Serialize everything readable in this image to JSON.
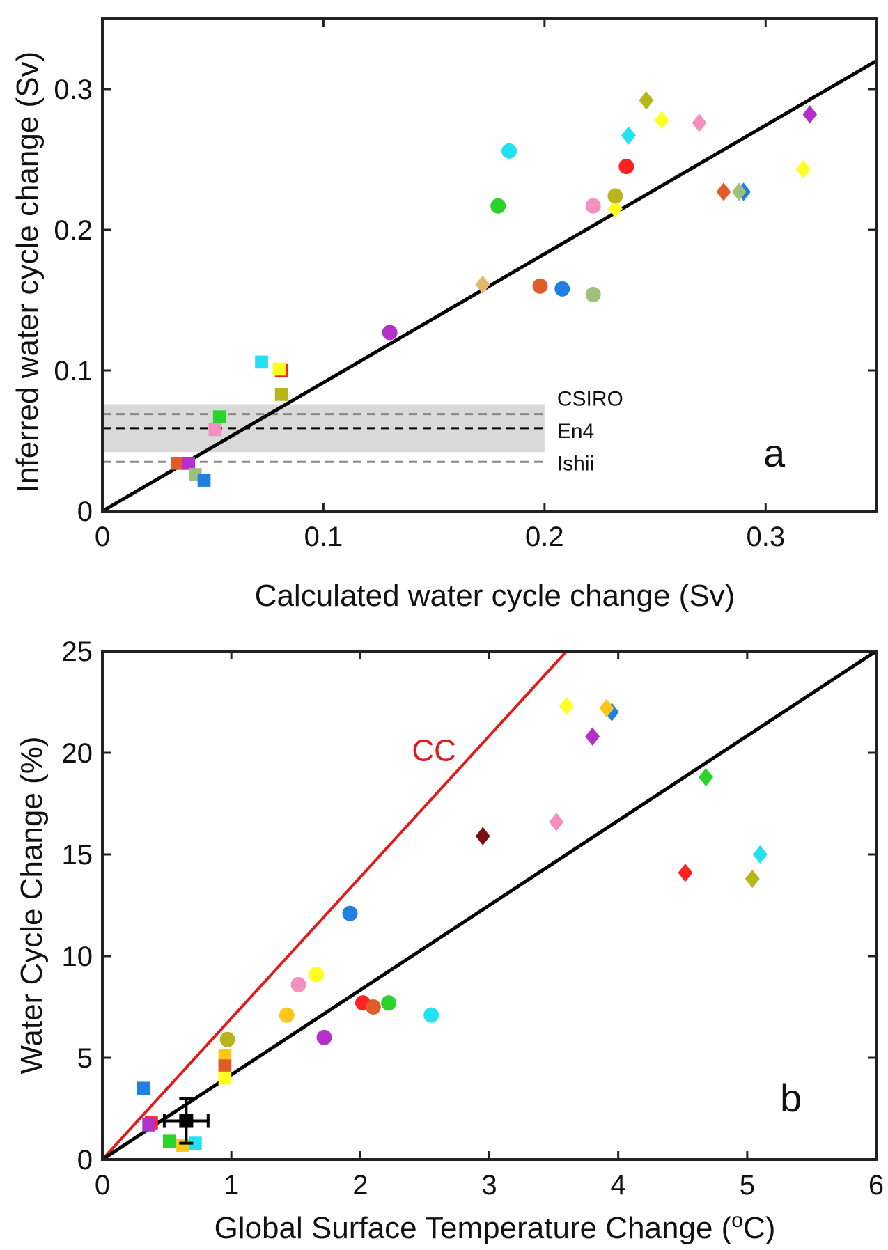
{
  "chart_data": [
    {
      "type": "scatter",
      "panel_letter": "a",
      "xlabel": "Calculated water cycle change (Sv)",
      "ylabel": "Inferred water cycle change (Sv)",
      "xlim": [
        0,
        0.35
      ],
      "ylim": [
        0,
        0.35
      ],
      "xticks": [
        0,
        0.1,
        0.2,
        0.3
      ],
      "yticks": [
        0,
        0.1,
        0.2,
        0.3
      ],
      "xtick_labels": [
        "0",
        "0.1",
        "0.2",
        "0.3"
      ],
      "ytick_labels": [
        "0",
        "0.1",
        "0.2",
        "0.3"
      ],
      "grid": false,
      "fit_line": {
        "x": [
          0,
          0.35
        ],
        "y": [
          0,
          0.32
        ],
        "color": "#000000"
      },
      "shaded_band": {
        "x": [
          0,
          0.2
        ],
        "y": [
          0.042,
          0.076
        ],
        "color": "#d9d9d9"
      },
      "reference_lines": [
        {
          "label": "CSIRO",
          "y": 0.069,
          "x_end": 0.2,
          "color": "#888888"
        },
        {
          "label": "En4",
          "y": 0.059,
          "x_end": 0.2,
          "color": "#000000"
        },
        {
          "label": "Ishii",
          "y": 0.035,
          "x_end": 0.2,
          "color": "#888888"
        }
      ],
      "points": [
        {
          "x": 0.034,
          "y": 0.034,
          "marker": "square",
          "color": "#e25c2a"
        },
        {
          "x": 0.039,
          "y": 0.034,
          "marker": "square",
          "color": "#b431c9"
        },
        {
          "x": 0.042,
          "y": 0.026,
          "marker": "square",
          "color": "#9fc07a"
        },
        {
          "x": 0.046,
          "y": 0.022,
          "marker": "square",
          "color": "#1f80e0"
        },
        {
          "x": 0.051,
          "y": 0.058,
          "marker": "square",
          "color": "#f48fbf"
        },
        {
          "x": 0.053,
          "y": 0.067,
          "marker": "square",
          "color": "#2ad42a"
        },
        {
          "x": 0.072,
          "y": 0.106,
          "marker": "square",
          "color": "#22e2f2"
        },
        {
          "x": 0.081,
          "y": 0.1,
          "marker": "square",
          "color": "#ff2222"
        },
        {
          "x": 0.08,
          "y": 0.101,
          "marker": "square",
          "color": "#ffff22"
        },
        {
          "x": 0.081,
          "y": 0.083,
          "marker": "square",
          "color": "#b8b41a"
        },
        {
          "x": 0.13,
          "y": 0.127,
          "marker": "circle",
          "color": "#b431c9"
        },
        {
          "x": 0.172,
          "y": 0.161,
          "marker": "diamond",
          "color": "#e6b86c"
        },
        {
          "x": 0.179,
          "y": 0.217,
          "marker": "circle",
          "color": "#2ad42a"
        },
        {
          "x": 0.184,
          "y": 0.256,
          "marker": "circle",
          "color": "#22e2f2"
        },
        {
          "x": 0.198,
          "y": 0.16,
          "marker": "circle",
          "color": "#e25c2a"
        },
        {
          "x": 0.208,
          "y": 0.158,
          "marker": "circle",
          "color": "#1f80e0"
        },
        {
          "x": 0.222,
          "y": 0.154,
          "marker": "circle",
          "color": "#9fc07a"
        },
        {
          "x": 0.222,
          "y": 0.217,
          "marker": "circle",
          "color": "#f48fbf"
        },
        {
          "x": 0.232,
          "y": 0.215,
          "marker": "diamond",
          "color": "#ffff22"
        },
        {
          "x": 0.232,
          "y": 0.224,
          "marker": "circle",
          "color": "#b8b41a"
        },
        {
          "x": 0.237,
          "y": 0.245,
          "marker": "circle",
          "color": "#ff2222"
        },
        {
          "x": 0.238,
          "y": 0.267,
          "marker": "diamond",
          "color": "#22e2f2"
        },
        {
          "x": 0.246,
          "y": 0.292,
          "marker": "diamond",
          "color": "#b8b41a"
        },
        {
          "x": 0.253,
          "y": 0.278,
          "marker": "diamond",
          "color": "#ffff22"
        },
        {
          "x": 0.27,
          "y": 0.276,
          "marker": "diamond",
          "color": "#f48fbf"
        },
        {
          "x": 0.281,
          "y": 0.227,
          "marker": "diamond",
          "color": "#e25c2a"
        },
        {
          "x": 0.29,
          "y": 0.227,
          "marker": "diamond",
          "color": "#1f80e0"
        },
        {
          "x": 0.288,
          "y": 0.227,
          "marker": "diamond",
          "color": "#9fc07a"
        },
        {
          "x": 0.317,
          "y": 0.243,
          "marker": "diamond",
          "color": "#ffff22"
        },
        {
          "x": 0.32,
          "y": 0.282,
          "marker": "diamond",
          "color": "#b431c9"
        }
      ]
    },
    {
      "type": "scatter",
      "panel_letter": "b",
      "xlabel": "Global Surface Temperature Change  (",
      "xlabel_degree": "o",
      "xlabel_unit": "C)",
      "ylabel": "Water Cycle Change (%)",
      "xlim": [
        0,
        6
      ],
      "ylim": [
        0,
        25
      ],
      "xticks": [
        0,
        1,
        2,
        3,
        4,
        5,
        6
      ],
      "yticks": [
        0,
        5,
        10,
        15,
        20,
        25
      ],
      "xtick_labels": [
        "0",
        "1",
        "2",
        "3",
        "4",
        "5",
        "6"
      ],
      "ytick_labels": [
        "0",
        "5",
        "10",
        "15",
        "20",
        "25"
      ],
      "grid": false,
      "fit_line": {
        "x": [
          0,
          6
        ],
        "y": [
          0,
          25
        ],
        "color": "#000000"
      },
      "cc_line": {
        "label": "CC",
        "x": [
          0,
          3.6
        ],
        "y": [
          0,
          25
        ],
        "color": "#e41a1a"
      },
      "cc_label_position": {
        "x": 2.4,
        "y": 19.6
      },
      "observation": {
        "x": 0.65,
        "y": 1.9,
        "xerr": 0.17,
        "yerr": 1.1,
        "color": "#000000"
      },
      "points": [
        {
          "x": 0.32,
          "y": 3.5,
          "marker": "square",
          "color": "#1f80e0"
        },
        {
          "x": 0.38,
          "y": 1.8,
          "marker": "square",
          "color": "#ff2222"
        },
        {
          "x": 0.36,
          "y": 1.7,
          "marker": "square",
          "color": "#b431c9"
        },
        {
          "x": 0.52,
          "y": 0.9,
          "marker": "square",
          "color": "#2ad42a"
        },
        {
          "x": 0.62,
          "y": 0.7,
          "marker": "square",
          "color": "#ffc61a"
        },
        {
          "x": 0.72,
          "y": 0.8,
          "marker": "square",
          "color": "#22e2f2"
        },
        {
          "x": 0.95,
          "y": 5.1,
          "marker": "square",
          "color": "#ffc61a"
        },
        {
          "x": 0.95,
          "y": 4.6,
          "marker": "square",
          "color": "#e25c2a"
        },
        {
          "x": 0.95,
          "y": 4.0,
          "marker": "square",
          "color": "#ffff22"
        },
        {
          "x": 0.97,
          "y": 5.9,
          "marker": "circle",
          "color": "#b8b41a"
        },
        {
          "x": 1.43,
          "y": 7.1,
          "marker": "circle",
          "color": "#ffc61a"
        },
        {
          "x": 1.52,
          "y": 8.6,
          "marker": "circle",
          "color": "#f48fbf"
        },
        {
          "x": 1.66,
          "y": 9.1,
          "marker": "circle",
          "color": "#ffff22"
        },
        {
          "x": 1.72,
          "y": 6.0,
          "marker": "circle",
          "color": "#b431c9"
        },
        {
          "x": 1.92,
          "y": 12.1,
          "marker": "circle",
          "color": "#1f80e0"
        },
        {
          "x": 2.02,
          "y": 7.7,
          "marker": "circle",
          "color": "#ff2222"
        },
        {
          "x": 2.1,
          "y": 7.5,
          "marker": "circle",
          "color": "#e25c2a"
        },
        {
          "x": 2.22,
          "y": 7.7,
          "marker": "circle",
          "color": "#2ad42a"
        },
        {
          "x": 2.55,
          "y": 7.1,
          "marker": "circle",
          "color": "#22e2f2"
        },
        {
          "x": 2.95,
          "y": 15.9,
          "marker": "diamond",
          "color": "#7a0f0f"
        },
        {
          "x": 3.52,
          "y": 16.6,
          "marker": "diamond",
          "color": "#f48fbf"
        },
        {
          "x": 3.6,
          "y": 22.3,
          "marker": "diamond",
          "color": "#ffff22"
        },
        {
          "x": 3.8,
          "y": 20.8,
          "marker": "diamond",
          "color": "#b431c9"
        },
        {
          "x": 3.95,
          "y": 22.0,
          "marker": "diamond",
          "color": "#1f80e0"
        },
        {
          "x": 3.91,
          "y": 22.2,
          "marker": "diamond",
          "color": "#ffc61a"
        },
        {
          "x": 4.52,
          "y": 14.1,
          "marker": "diamond",
          "color": "#ff2222"
        },
        {
          "x": 4.68,
          "y": 18.8,
          "marker": "diamond",
          "color": "#2ad42a"
        },
        {
          "x": 5.04,
          "y": 13.8,
          "marker": "diamond",
          "color": "#b8b41a"
        },
        {
          "x": 5.1,
          "y": 15.0,
          "marker": "diamond",
          "color": "#22e2f2"
        }
      ]
    }
  ]
}
